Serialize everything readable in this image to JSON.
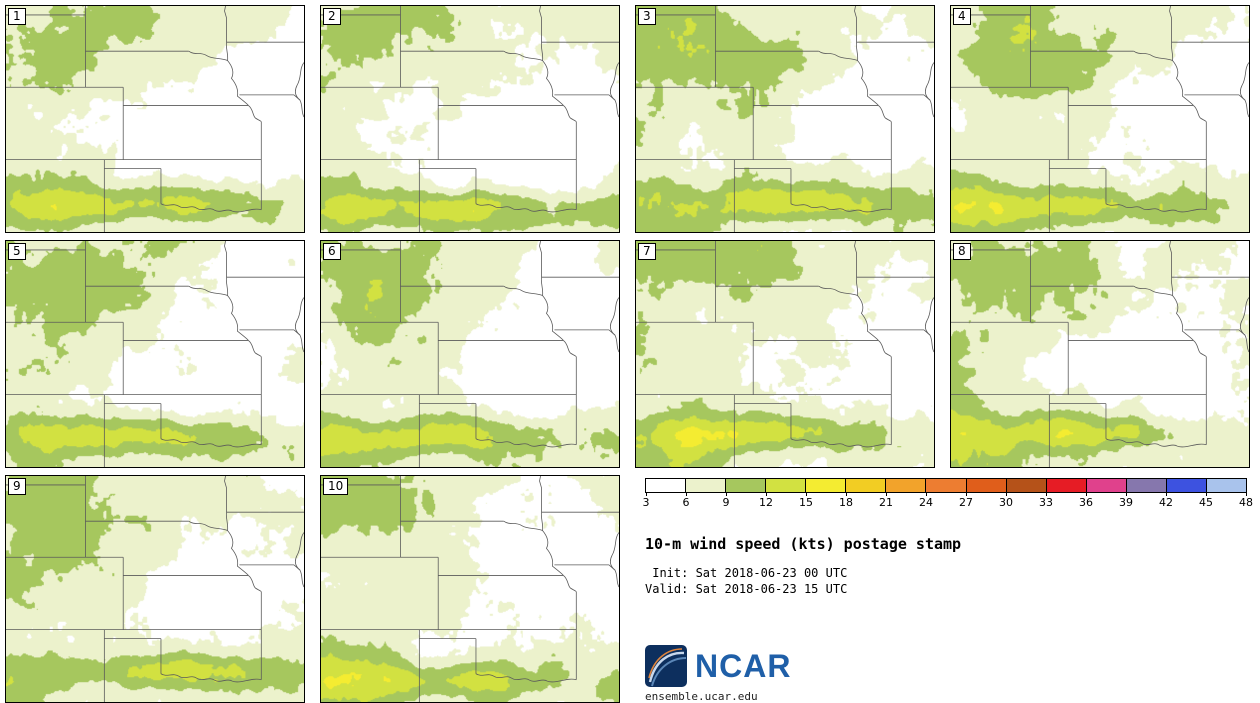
{
  "panels": [
    {
      "label": "1"
    },
    {
      "label": "2"
    },
    {
      "label": "3"
    },
    {
      "label": "4"
    },
    {
      "label": "5"
    },
    {
      "label": "6"
    },
    {
      "label": "7"
    },
    {
      "label": "8"
    },
    {
      "label": "9"
    },
    {
      "label": "10"
    }
  ],
  "legend": {
    "ticks": [
      "3",
      "6",
      "9",
      "12",
      "15",
      "18",
      "21",
      "24",
      "27",
      "30",
      "33",
      "36",
      "39",
      "42",
      "45",
      "48"
    ],
    "colors": [
      "#ffffff",
      "#ecf2cc",
      "#a6c75e",
      "#d2e141",
      "#f4ec31",
      "#f2cd23",
      "#f2a32b",
      "#ed7d31",
      "#e05e1b",
      "#b55219",
      "#e61c25",
      "#e0418c",
      "#8677ad",
      "#3d52e0",
      "#a9c3ec"
    ]
  },
  "header": {
    "title": "10-m wind speed (kts) postage stamp",
    "init_line": " Init: Sat 2018-06-23 00 UTC",
    "valid_line": "Valid: Sat 2018-06-23 15 UTC"
  },
  "branding": {
    "logo_text": "NCAR",
    "site": "ensemble.ucar.edu"
  },
  "chart_data": {
    "type": "heatmap",
    "title": "10-m wind speed (kts) postage stamp",
    "units": "kts",
    "init": "Sat 2018-06-23 00 UTC",
    "valid": "Sat 2018-06-23 15 UTC",
    "ensemble_members": [
      "1",
      "2",
      "3",
      "4",
      "5",
      "6",
      "7",
      "8",
      "9",
      "10"
    ],
    "colorbar_ticks": [
      3,
      6,
      9,
      12,
      15,
      18,
      21,
      24,
      27,
      30,
      33,
      36,
      39,
      42,
      45,
      48
    ],
    "colorbar_colors": [
      "#ffffff",
      "#ecf2cc",
      "#a6c75e",
      "#d2e141",
      "#f4ec31",
      "#f2cd23",
      "#f2a32b",
      "#ed7d31",
      "#e05e1b",
      "#b55219",
      "#e61c25",
      "#e0418c",
      "#8677ad",
      "#3d52e0",
      "#a9c3ec"
    ],
    "region": "Central Great Plains (WY/SD/NE/CO/KS/OK/MO/IA and TX-NM panhandles) with state borders drawn",
    "field_summary": "All 10 members show winds mostly 3-12 kts: pale 6-9 kt background, 9-12 kt green patches over the northwest and north-central areas, a 12-21 kt yellow corridor along the Oklahoma / southern Kansas / Texas panhandle region, and a calm (<6 kt) white pocket over Missouri-Iowa.",
    "legend_position": "bottom-right",
    "grid": false
  }
}
